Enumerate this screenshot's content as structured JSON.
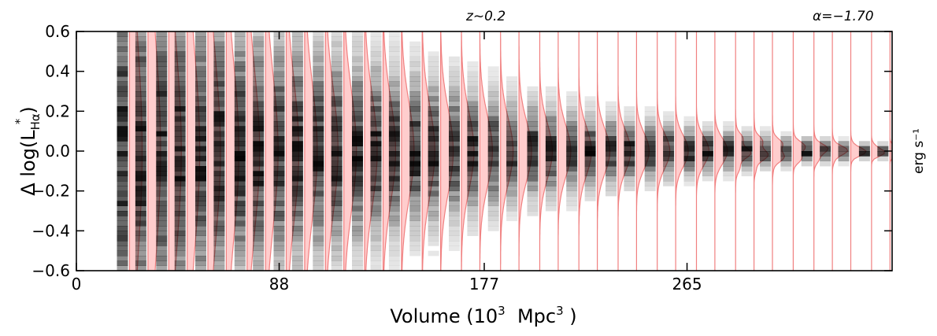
{
  "chart_data": {
    "type": "heatmap",
    "annotations": {
      "redshift": "z~0.2",
      "alpha": "α=−1.70"
    },
    "xlabel": {
      "main": "Volume (10",
      "sup": "3",
      "unit": "Mpc",
      "unit_sup": "3",
      "close": ")"
    },
    "ylabel": {
      "prefix": "Δ log(L",
      "sub": "Hα",
      "sup": "*",
      "close": ")"
    },
    "right_label": "erg s⁻¹",
    "xlim": [
      0,
      354
    ],
    "ylim": [
      -0.6,
      0.6
    ],
    "x_ticks": [
      0,
      88,
      177,
      265
    ],
    "x_tick_labels": [
      "0",
      "88",
      "177",
      "265"
    ],
    "y_ticks": [
      -0.6,
      -0.4,
      -0.2,
      0.0,
      0.2,
      0.4,
      0.6
    ],
    "y_tick_labels": [
      "−0.6",
      "−0.4",
      "−0.2",
      "0.0",
      "0.2",
      "0.4",
      "0.6"
    ],
    "bin_volumes": [
      20,
      28,
      37,
      45,
      54,
      62,
      71,
      79,
      88,
      96,
      105,
      113,
      122,
      130,
      138,
      147,
      155,
      164,
      172,
      181,
      189,
      198,
      206,
      215,
      223,
      232,
      240,
      249,
      257,
      266,
      274,
      283,
      291,
      299,
      308,
      317,
      325,
      333,
      342,
      350
    ],
    "bin_sigma": [
      0.6,
      0.56,
      0.52,
      0.49,
      0.46,
      0.43,
      0.4,
      0.38,
      0.36,
      0.34,
      0.32,
      0.3,
      0.28,
      0.26,
      0.24,
      0.225,
      0.21,
      0.195,
      0.18,
      0.165,
      0.15,
      0.14,
      0.13,
      0.12,
      0.11,
      0.1,
      0.09,
      0.085,
      0.078,
      0.07,
      0.064,
      0.058,
      0.052,
      0.046,
      0.04,
      0.035,
      0.03,
      0.026,
      0.022,
      0.019
    ],
    "colors": {
      "density": "#000000",
      "kde_fill": "#ffc8c8",
      "kde_line": "#f08080"
    }
  }
}
